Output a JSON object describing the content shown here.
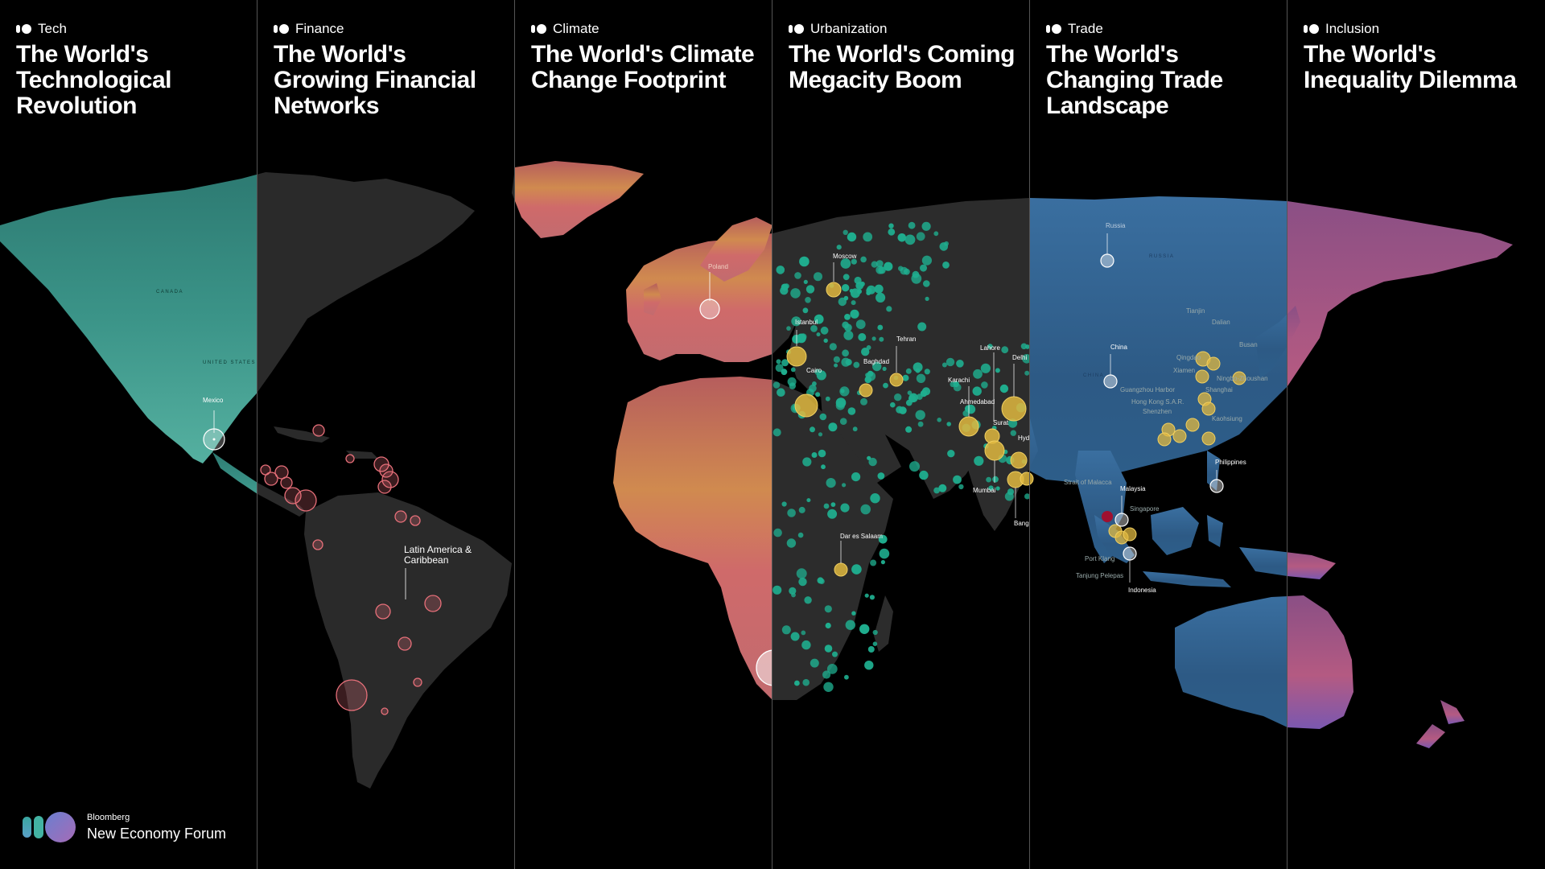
{
  "panels": [
    {
      "tag": "Tech",
      "title": "The World's Technological Revolution"
    },
    {
      "tag": "Finance",
      "title": "The World's Growing Financial Networks"
    },
    {
      "tag": "Climate",
      "title": "The World's Climate Change Footprint"
    },
    {
      "tag": "Urbanization",
      "title": "The World's Coming Megacity Boom"
    },
    {
      "tag": "Trade",
      "title": "The World's Changing Trade Landscape"
    },
    {
      "tag": "Inclusion",
      "title": "The World's Inequality Dilemma"
    }
  ],
  "labels": {
    "mexico": "Mexico",
    "latam": "Latin America & Caribbean",
    "poland": "Poland",
    "moscow": "Moscow",
    "istanbul": "Istanbul",
    "tehran": "Tehran",
    "baghdad": "Baghdad",
    "cairo": "Cairo",
    "karachi": "Karachi",
    "lahore": "Lahore",
    "delhi": "Delhi",
    "ahmedabad": "Ahmedabad",
    "surat": "Surat",
    "mumbai": "Mumbai",
    "hyd": "Hyd",
    "bang": "Bang",
    "dar": "Dar es Salaam",
    "russia": "Russia",
    "china": "China",
    "malaysia": "Malaysia",
    "singapore": "Singapore",
    "indonesia": "Indonesia",
    "philippines": "Philippines",
    "port_klang": "Port Klang",
    "tanjung": "Tanjung Pelepas",
    "strait": "Strait of Malacca",
    "guangzhou": "Guangzhou Harbor",
    "hongkong": "Hong Kong S.A.R.",
    "shenzhen": "Shenzhen",
    "shanghai": "Shanghai",
    "qingdao": "Qingdao",
    "tianjin": "Tianjin",
    "dalian": "Dalian",
    "busan": "Busan",
    "xiamen": "Xiamen",
    "kaohsiung": "Kaohsiung",
    "ningbo": "Ningbo-Zhoushan"
  },
  "countries": {
    "canada": "CANADA",
    "us": "UNITED STATES",
    "russia": "RUSSIA",
    "china": "CHINA"
  },
  "brand": {
    "small": "Bloomberg",
    "big": "New Economy Forum"
  },
  "colors": {
    "tech": "#2f8f82",
    "finance": "#2a2a2a",
    "climate": "#c8606a",
    "urbanization": "#2c2c2c",
    "trade": "#2f5d8c",
    "inclusion": "#b0577f",
    "teal_dot": "#1fae8f",
    "gold_dot": "#e0b840",
    "pink_circle": "#e8707a"
  }
}
